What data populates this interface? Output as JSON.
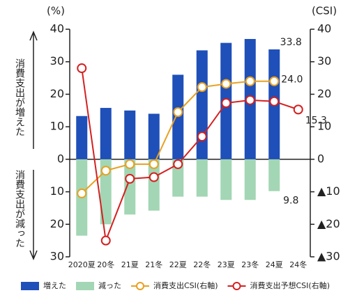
{
  "chart_data": {
    "type": "bar",
    "y_unit_label": "(%)",
    "y2_unit_label": "(CSI)",
    "side_label_top": "消費支出が増えた",
    "side_label_bottom": "消費支出が減った",
    "categories": [
      "2020夏",
      "20冬",
      "21夏",
      "21冬",
      "22夏",
      "22冬",
      "23夏",
      "23冬",
      "24夏",
      "24冬"
    ],
    "ylim": [
      -30,
      40
    ],
    "yticks": [
      40,
      30,
      20,
      10,
      0,
      {
        "value": -10,
        "label": "10"
      },
      {
        "value": -20,
        "label": "20"
      },
      {
        "value": -30,
        "label": "30"
      }
    ],
    "y2lim": [
      -30,
      40
    ],
    "y2ticks": [
      40,
      30,
      20,
      10,
      0,
      {
        "value": -10,
        "label": "▲10"
      },
      {
        "value": -20,
        "label": "▲20"
      },
      {
        "value": -30,
        "label": "▲30"
      }
    ],
    "series": [
      {
        "name": "増えた",
        "kind": "bar",
        "color": "#1f4fb8",
        "values": [
          13.3,
          15.8,
          15.0,
          14.0,
          26.0,
          33.5,
          35.8,
          37.0,
          33.8,
          null
        ],
        "value_labels": [
          null,
          null,
          null,
          null,
          null,
          null,
          null,
          null,
          "33.8",
          null
        ]
      },
      {
        "name": "減った",
        "kind": "bar",
        "color": "#a3d6b4",
        "values": [
          -23.5,
          -20.0,
          -17.0,
          -15.8,
          -11.5,
          -11.5,
          -12.5,
          -12.5,
          -9.8,
          null
        ],
        "value_labels": [
          null,
          null,
          null,
          null,
          null,
          null,
          null,
          null,
          "9.8",
          null
        ]
      },
      {
        "name": "消費支出CSI(右軸)",
        "kind": "line",
        "axis": "y2",
        "color": "#e8a020",
        "values": [
          -10.5,
          -3.5,
          -1.5,
          -1.5,
          14.5,
          22.2,
          23.2,
          24.0,
          24.0,
          null
        ],
        "value_labels": [
          null,
          null,
          null,
          null,
          null,
          null,
          null,
          null,
          "24.0",
          null
        ]
      },
      {
        "name": "消費支出予想CSI(右軸)",
        "kind": "line",
        "axis": "y2",
        "color": "#d42020",
        "values": [
          28.0,
          -25.0,
          -6.0,
          -5.5,
          -1.5,
          7.0,
          17.3,
          18.2,
          17.8,
          15.3
        ],
        "value_labels": [
          null,
          null,
          null,
          null,
          null,
          null,
          null,
          null,
          null,
          "15.3"
        ]
      }
    ]
  }
}
